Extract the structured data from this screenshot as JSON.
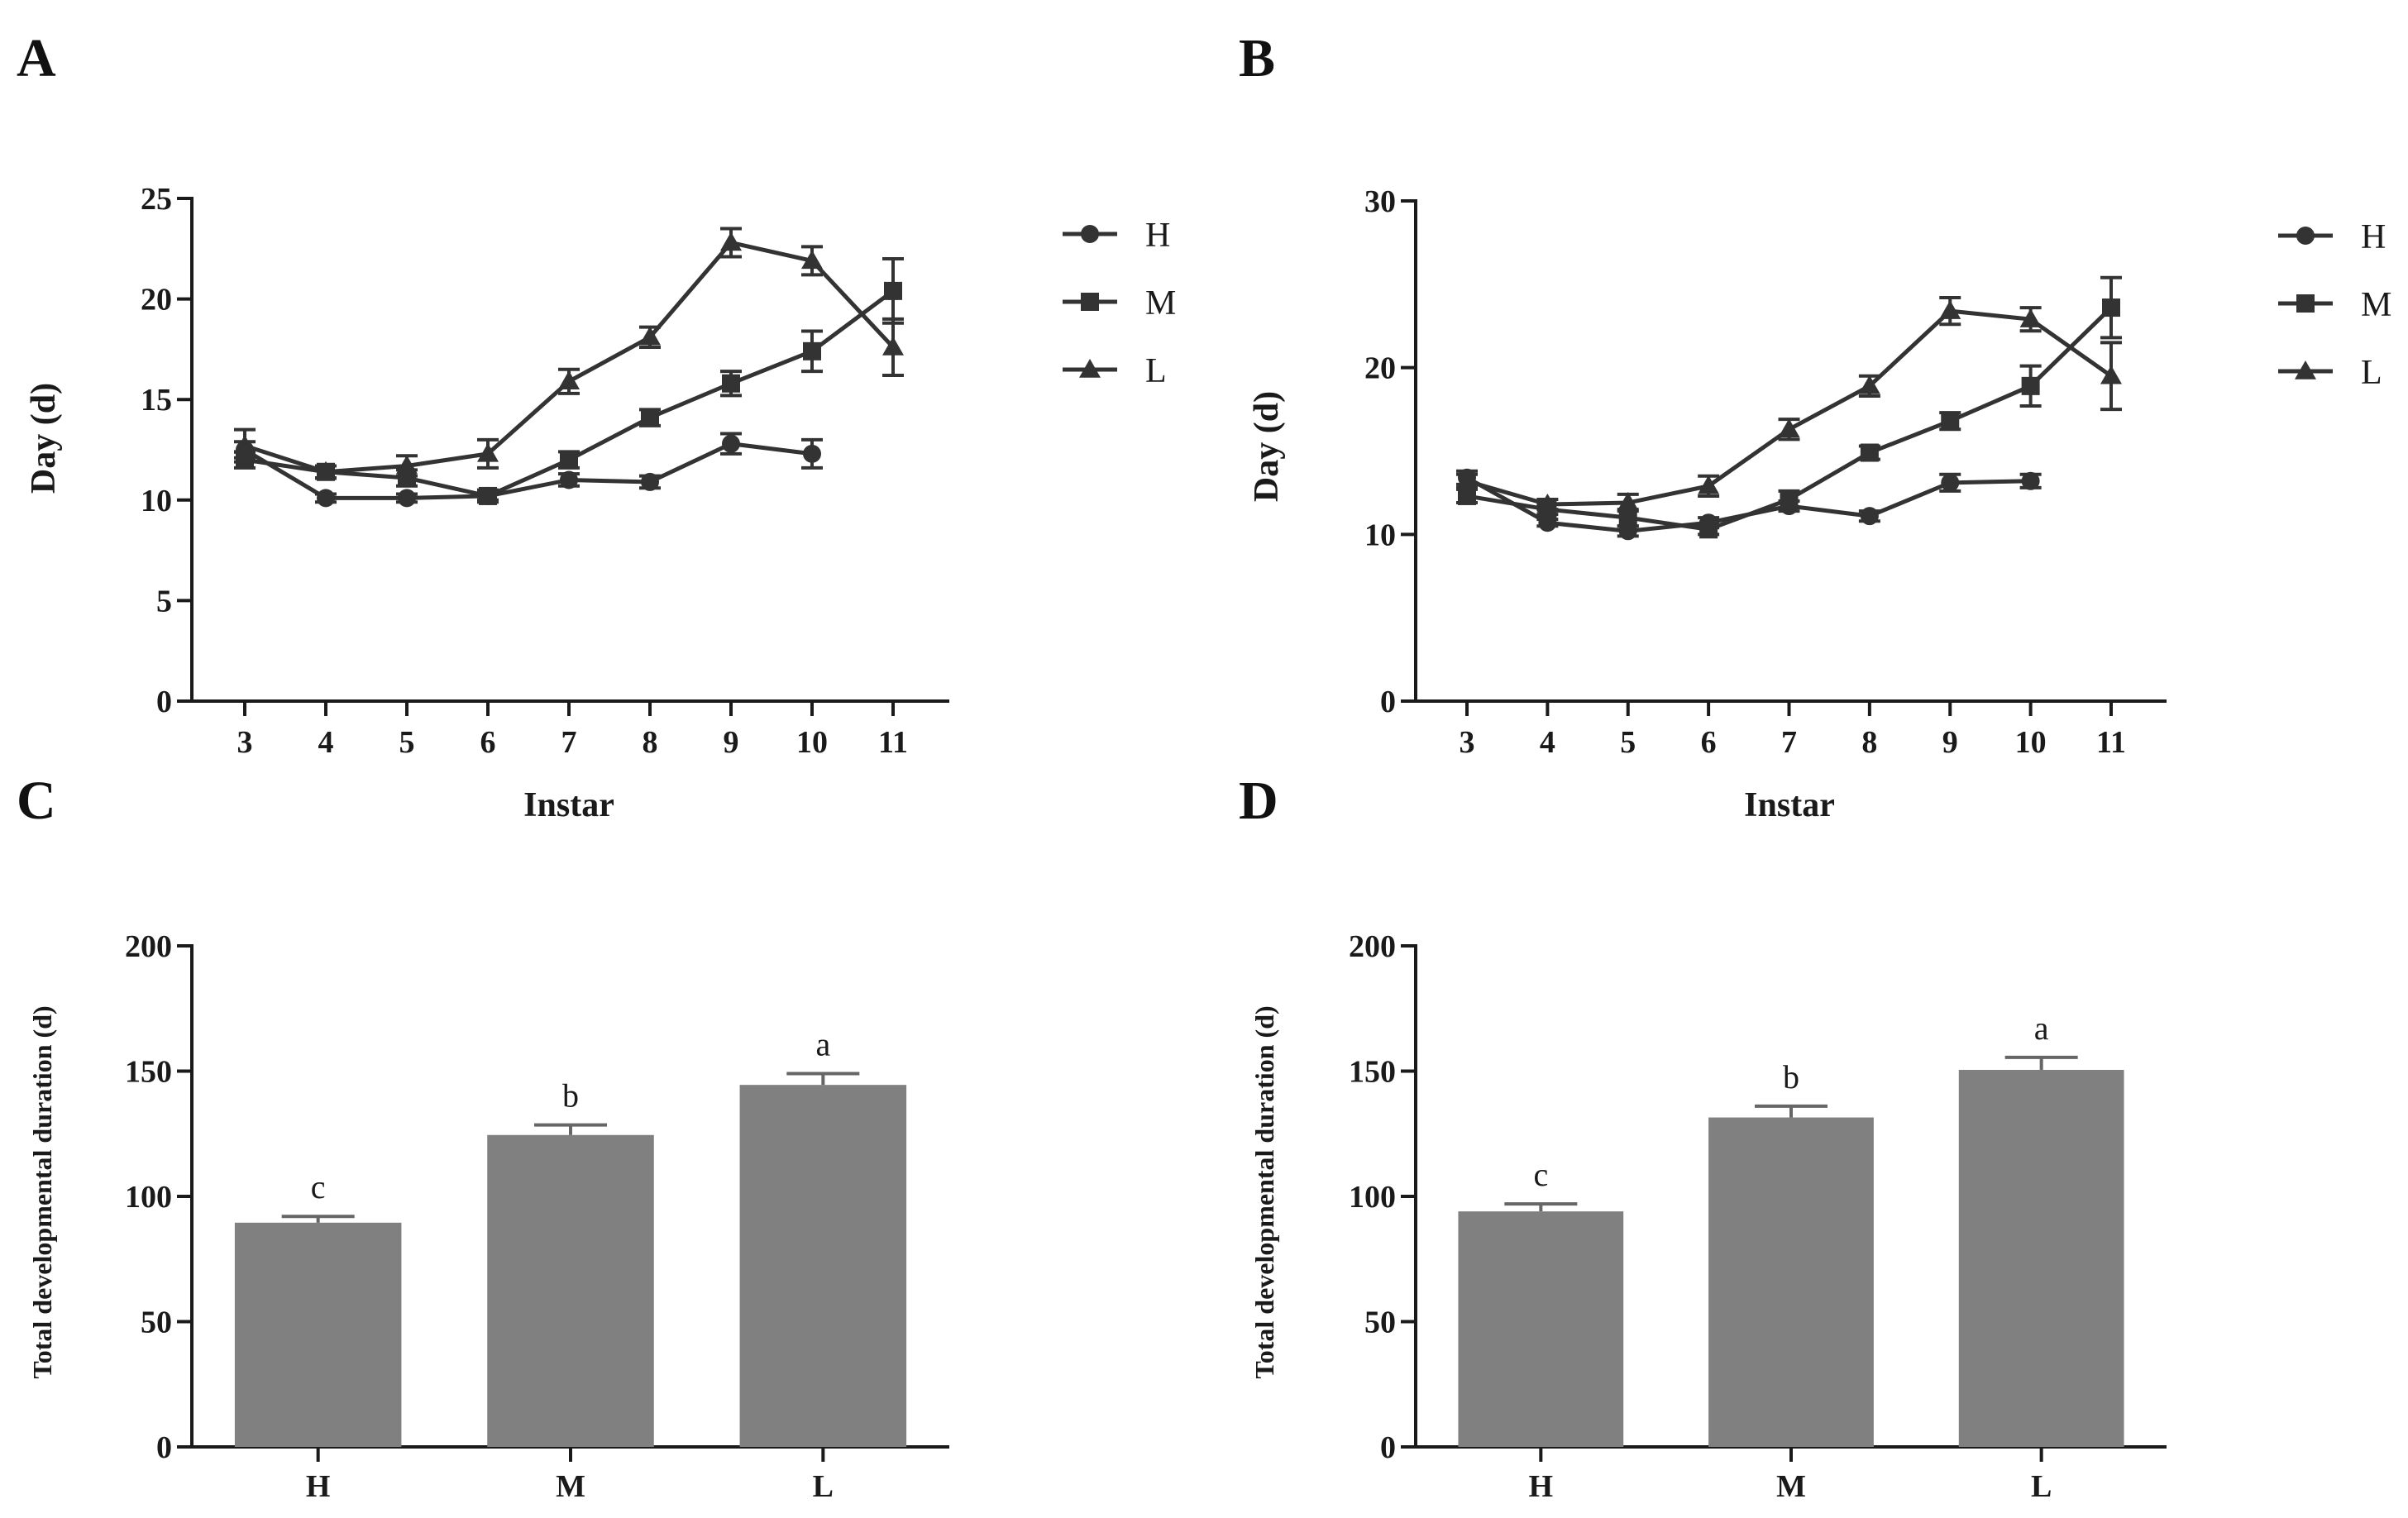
{
  "chart_data": [
    {
      "panel": "A",
      "type": "line",
      "xlabel": "Instar",
      "ylabel": "Day (d)",
      "ylim": [
        0,
        25
      ],
      "yticks": [
        "0",
        "5",
        "10",
        "15",
        "20",
        "25"
      ],
      "categories": [
        "3",
        "4",
        "5",
        "6",
        "7",
        "8",
        "9",
        "10",
        "11"
      ],
      "legend_position": "right",
      "series": [
        {
          "name": "H",
          "marker": "circle",
          "values": [
            12.5,
            10.1,
            10.1,
            10.2,
            11.0,
            10.9,
            12.8,
            12.3,
            null
          ],
          "errors": [
            0.4,
            0.2,
            0.2,
            0.2,
            0.3,
            0.3,
            0.5,
            0.7,
            null
          ]
        },
        {
          "name": "M",
          "marker": "square",
          "values": [
            12.0,
            11.4,
            11.1,
            10.2,
            12.0,
            14.1,
            15.8,
            17.4,
            20.4
          ],
          "errors": [
            0.4,
            0.3,
            0.4,
            0.3,
            0.4,
            0.4,
            0.6,
            1.0,
            1.6
          ]
        },
        {
          "name": "L",
          "marker": "triangle",
          "values": [
            12.7,
            11.4,
            11.7,
            12.3,
            15.9,
            18.1,
            22.8,
            21.9,
            17.6
          ],
          "errors": [
            0.8,
            0.3,
            0.5,
            0.7,
            0.6,
            0.5,
            0.7,
            0.7,
            1.4
          ]
        }
      ]
    },
    {
      "panel": "B",
      "type": "line",
      "xlabel": "Instar",
      "ylabel": "Day (d)",
      "ylim": [
        0,
        30
      ],
      "yticks": [
        "0",
        "10",
        "20",
        "30"
      ],
      "categories": [
        "3",
        "4",
        "5",
        "6",
        "7",
        "8",
        "9",
        "10",
        "11"
      ],
      "legend_position": "right",
      "series": [
        {
          "name": "H",
          "marker": "circle",
          "values": [
            13.4,
            10.7,
            10.2,
            10.7,
            11.7,
            11.1,
            13.1,
            13.2,
            null
          ],
          "errors": [
            0.4,
            0.2,
            0.3,
            0.3,
            0.3,
            0.3,
            0.5,
            0.4,
            null
          ]
        },
        {
          "name": "M",
          "marker": "square",
          "values": [
            12.3,
            11.5,
            11.0,
            10.3,
            12.1,
            14.9,
            16.8,
            18.9,
            23.6
          ],
          "errors": [
            0.4,
            0.3,
            0.5,
            0.3,
            0.5,
            0.4,
            0.5,
            1.2,
            1.8
          ]
        },
        {
          "name": "L",
          "marker": "triangle",
          "values": [
            13.2,
            11.8,
            11.9,
            12.9,
            16.3,
            18.9,
            23.4,
            22.9,
            19.5
          ],
          "errors": [
            0.4,
            0.3,
            0.5,
            0.6,
            0.6,
            0.6,
            0.8,
            0.7,
            2.0
          ]
        }
      ]
    },
    {
      "panel": "C",
      "type": "bar",
      "xlabel": "",
      "ylabel": "Total developmental duration (d)",
      "ylim": [
        0,
        200
      ],
      "yticks": [
        "0",
        "50",
        "100",
        "150",
        "200"
      ],
      "categories": [
        "H",
        "M",
        "L"
      ],
      "values": [
        89.5,
        124.5,
        144.5
      ],
      "errors": [
        2.5,
        4.0,
        4.5
      ],
      "annotations": [
        "c",
        "b",
        "a"
      ],
      "bar_color": "#808080"
    },
    {
      "panel": "D",
      "type": "bar",
      "xlabel": "",
      "ylabel": "Total developmental duration (d)",
      "ylim": [
        0,
        200
      ],
      "yticks": [
        "0",
        "50",
        "100",
        "150",
        "200"
      ],
      "categories": [
        "H",
        "M",
        "L"
      ],
      "values": [
        94.0,
        131.5,
        150.5
      ],
      "errors": [
        3.0,
        4.5,
        5.0
      ],
      "annotations": [
        "c",
        "b",
        "a"
      ],
      "bar_color": "#808080"
    }
  ],
  "colors": {
    "line": "#333333",
    "axis": "#1a1a1a",
    "bar": "#808080"
  }
}
